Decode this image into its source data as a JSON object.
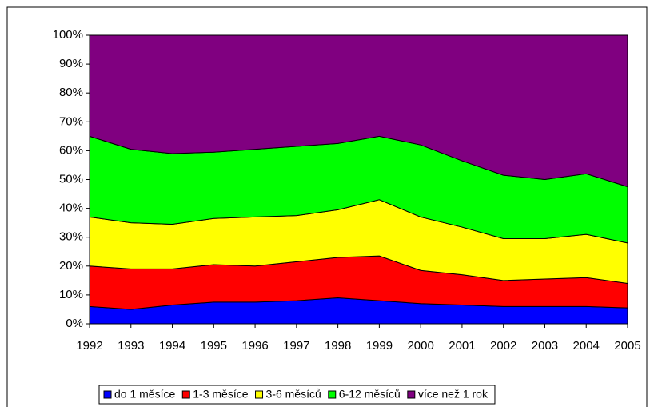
{
  "chart_data": {
    "type": "stacked_area_100",
    "categories": [
      "1992",
      "1993",
      "1994",
      "1995",
      "1996",
      "1997",
      "1998",
      "1999",
      "2000",
      "2001",
      "2002",
      "2003",
      "2004",
      "2005"
    ],
    "series": [
      {
        "name": "do 1 měsíce",
        "color": "#0000ff",
        "values": [
          6,
          5,
          6.5,
          7.5,
          7.5,
          8,
          9,
          8,
          7,
          6.5,
          6,
          6,
          6,
          5.5
        ]
      },
      {
        "name": "1-3 měsíce",
        "color": "#ff0000",
        "values": [
          14,
          14,
          12.5,
          13,
          12.5,
          13.5,
          14,
          15.5,
          11.5,
          10.5,
          9,
          9.5,
          10,
          8.5
        ]
      },
      {
        "name": "3-6 měsíců",
        "color": "#ffff00",
        "values": [
          17,
          16,
          15.5,
          16,
          17,
          16,
          16.5,
          19.5,
          18.5,
          16.5,
          14.5,
          14,
          15,
          14
        ]
      },
      {
        "name": "6-12 měsíců",
        "color": "#00ff00",
        "values": [
          28,
          25.5,
          24.5,
          23,
          23.5,
          24,
          23,
          22,
          25,
          23,
          22,
          20.5,
          21,
          19.5
        ]
      },
      {
        "name": "více než 1 rok",
        "color": "#800080",
        "values": [
          35,
          39.5,
          41,
          40.5,
          39.5,
          38.5,
          37.5,
          35,
          38,
          43.5,
          48.5,
          50,
          48,
          52.5
        ]
      }
    ],
    "ylim": [
      0,
      100
    ],
    "yticks": [
      {
        "value": 0,
        "label": "0%"
      },
      {
        "value": 10,
        "label": "10%"
      },
      {
        "value": 20,
        "label": "20%"
      },
      {
        "value": 30,
        "label": "30%"
      },
      {
        "value": 40,
        "label": "40%"
      },
      {
        "value": 50,
        "label": "50%"
      },
      {
        "value": 60,
        "label": "60%"
      },
      {
        "value": 70,
        "label": "70%"
      },
      {
        "value": 80,
        "label": "80%"
      },
      {
        "value": 90,
        "label": "90%"
      },
      {
        "value": 100,
        "label": "100%"
      }
    ],
    "legend": "bottom"
  }
}
